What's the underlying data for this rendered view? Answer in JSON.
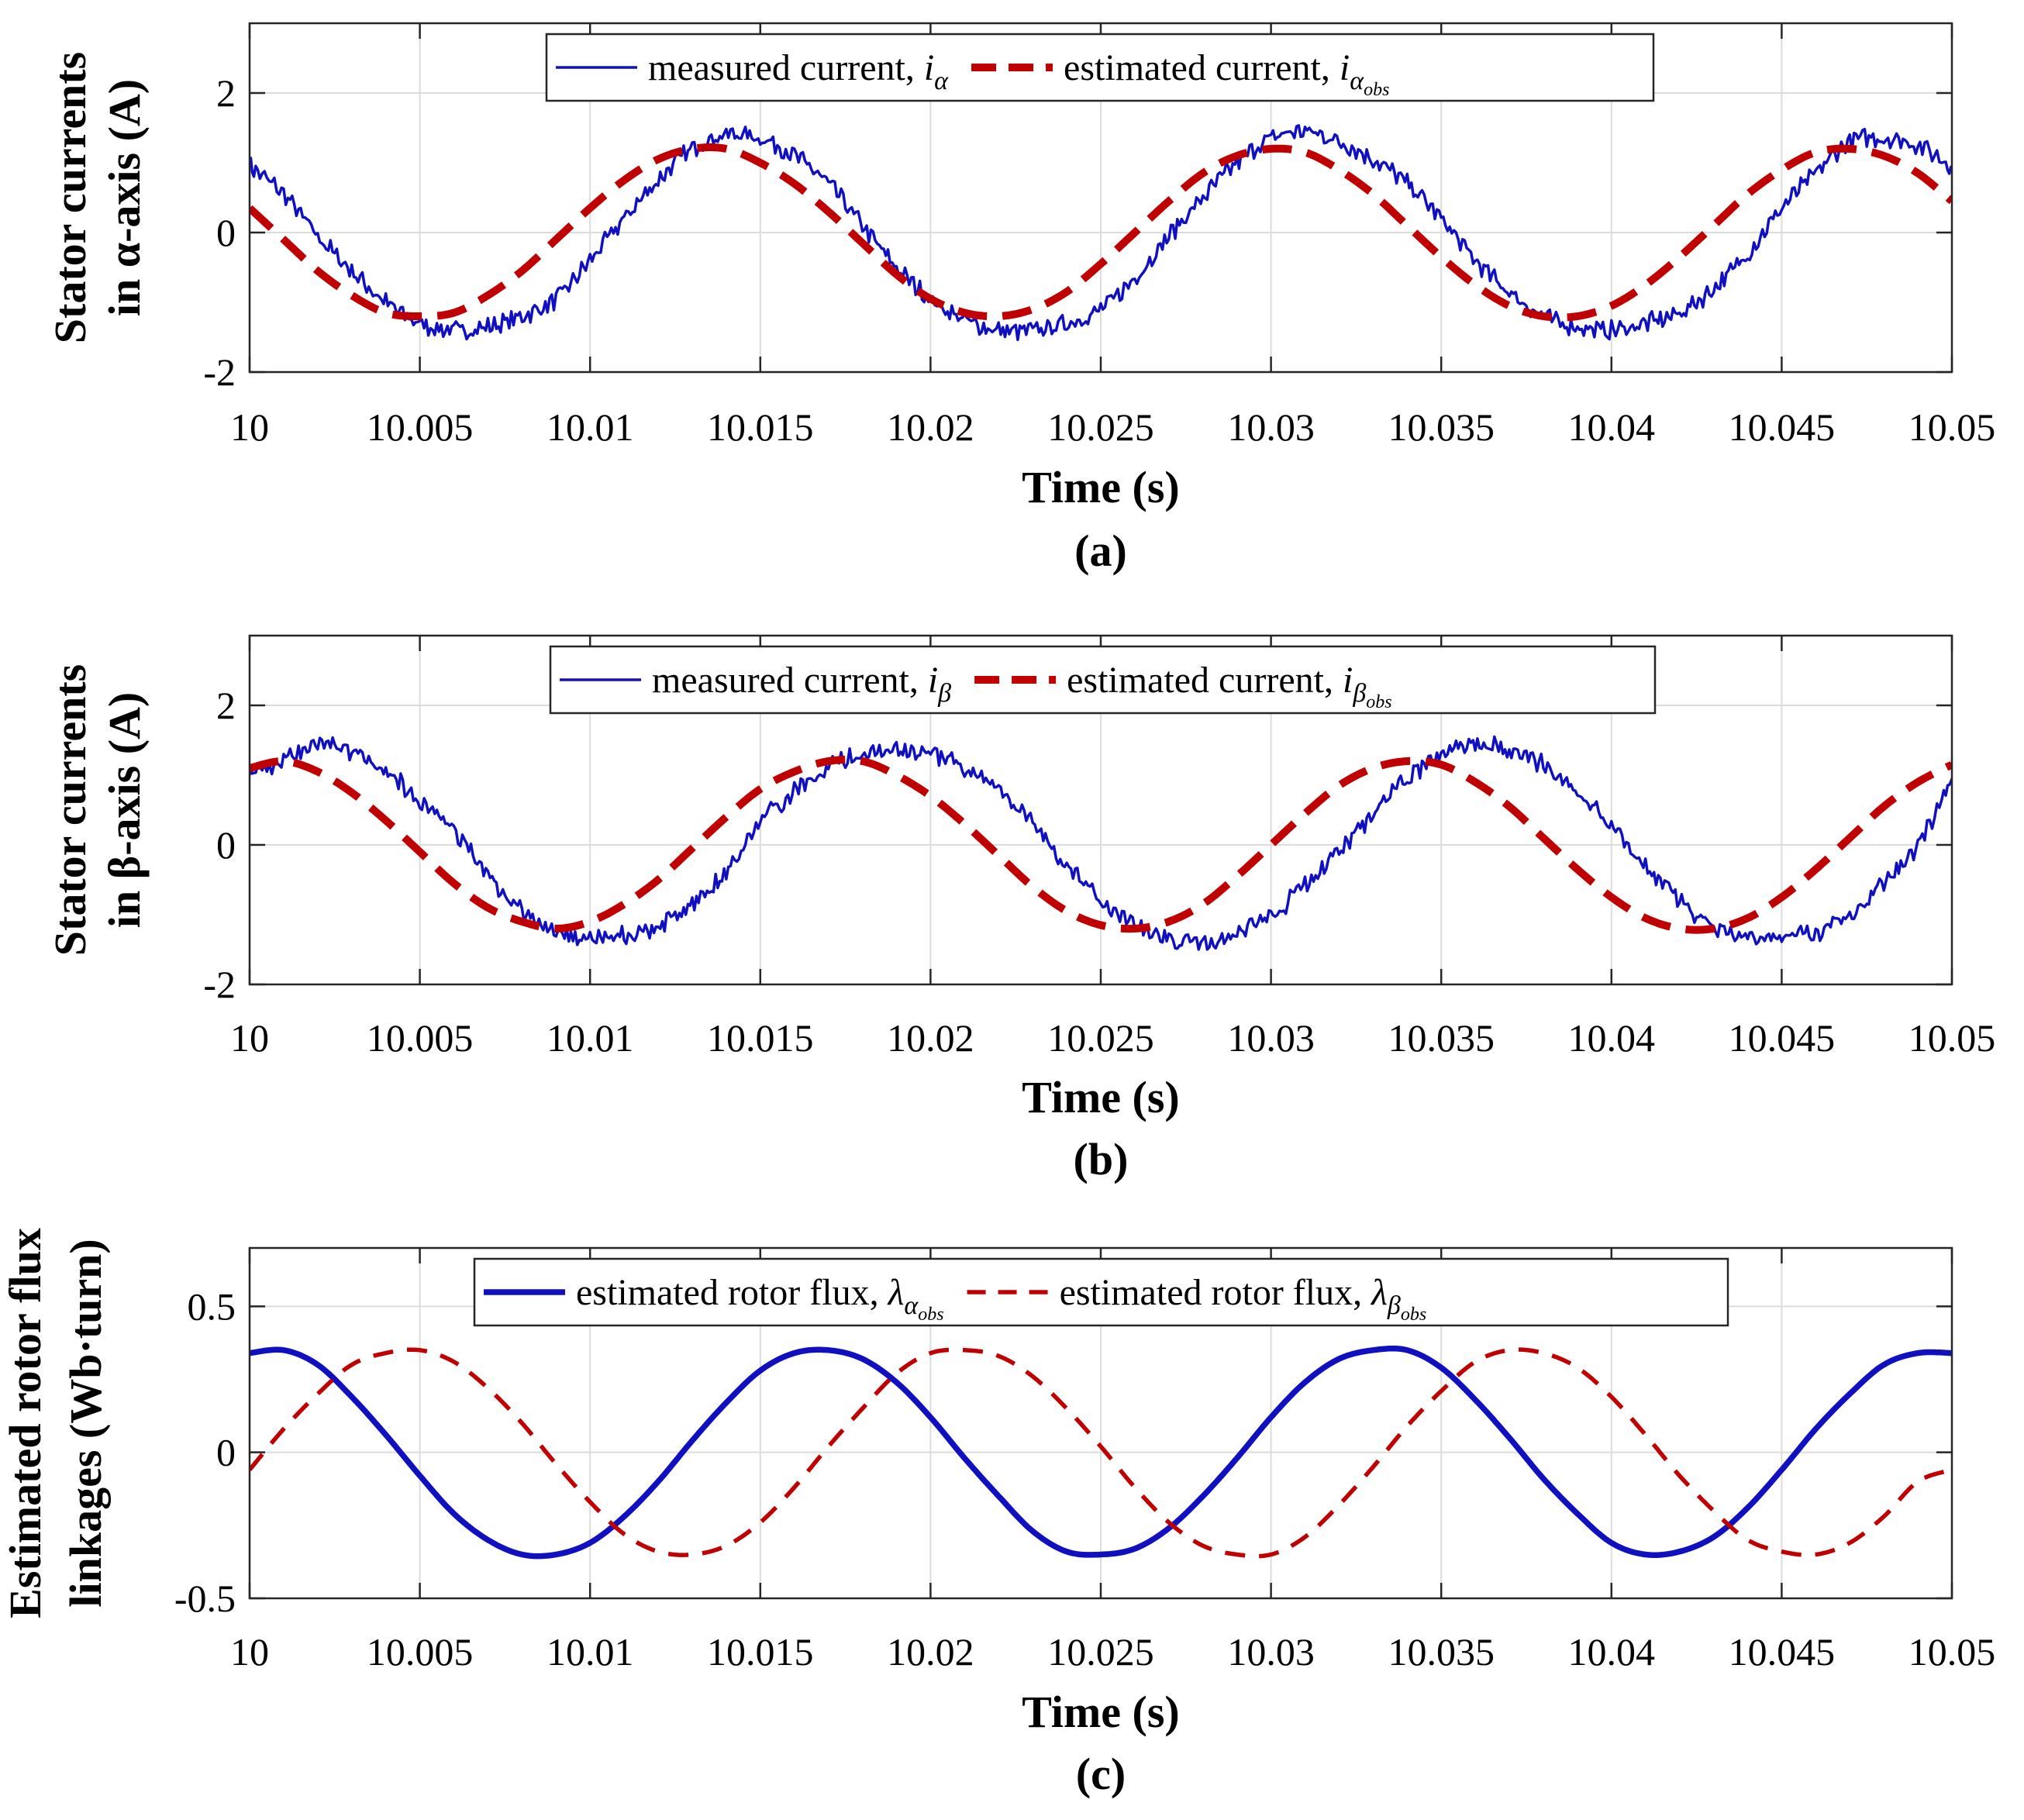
{
  "chart_data": [
    {
      "type": "line",
      "panel_label": "(a)",
      "xlabel": "Time (s)",
      "ylabel_lines": [
        "Stator currents",
        "in α-axis (A)"
      ],
      "xlim": [
        10,
        10.05
      ],
      "ylim": [
        -2,
        3
      ],
      "xticks": [
        10,
        10.005,
        10.01,
        10.015,
        10.02,
        10.025,
        10.03,
        10.035,
        10.04,
        10.045,
        10.05
      ],
      "xtick_labels": [
        "10",
        "10.005",
        "10.01",
        "10.015",
        "10.02",
        "10.025",
        "10.03",
        "10.035",
        "10.04",
        "10.045",
        "10.05"
      ],
      "yticks": [
        -2,
        0,
        2
      ],
      "ytick_labels": [
        "-2",
        "0",
        "2"
      ],
      "grid": true,
      "legend_placement": "top-center",
      "series": [
        {
          "name": "measured current, iα",
          "legend": {
            "prefix": "measured current, ",
            "symbol": "i",
            "sub": "α",
            "subsub": ""
          },
          "color": "#1010c0",
          "style": "solid",
          "noisy": true,
          "x": [
            10.0,
            10.001,
            10.002,
            10.003,
            10.004,
            10.005,
            10.006,
            10.007,
            10.008,
            10.009,
            10.01,
            10.011,
            10.012,
            10.013,
            10.014,
            10.015,
            10.016,
            10.017,
            10.018,
            10.019,
            10.02,
            10.021,
            10.022,
            10.023,
            10.024,
            10.025,
            10.026,
            10.027,
            10.028,
            10.029,
            10.03,
            10.031,
            10.032,
            10.033,
            10.034,
            10.035,
            10.036,
            10.037,
            10.038,
            10.039,
            10.04,
            10.041,
            10.042,
            10.043,
            10.044,
            10.045,
            10.046,
            10.047,
            10.048,
            10.049,
            10.05
          ],
          "y": [
            0.95,
            0.55,
            -0.05,
            -0.55,
            -1.0,
            -1.3,
            -1.4,
            -1.35,
            -1.2,
            -0.95,
            -0.4,
            0.2,
            0.75,
            1.2,
            1.4,
            1.35,
            1.1,
            0.7,
            0.1,
            -0.5,
            -0.95,
            -1.25,
            -1.4,
            -1.4,
            -1.3,
            -1.1,
            -0.65,
            -0.05,
            0.5,
            1.0,
            1.35,
            1.45,
            1.3,
            1.05,
            0.7,
            0.2,
            -0.4,
            -0.85,
            -1.2,
            -1.35,
            -1.4,
            -1.3,
            -1.15,
            -0.8,
            -0.3,
            0.35,
            0.85,
            1.3,
            1.35,
            1.25,
            0.95
          ]
        },
        {
          "name": "estimated current, iαobs",
          "legend": {
            "prefix": "estimated current, ",
            "symbol": "i",
            "sub": "α",
            "subsub": "obs"
          },
          "color": "#c00000",
          "style": "dashed",
          "noisy": false,
          "x": [
            10.0,
            10.001,
            10.002,
            10.003,
            10.004,
            10.005,
            10.006,
            10.007,
            10.008,
            10.009,
            10.01,
            10.011,
            10.012,
            10.013,
            10.014,
            10.015,
            10.016,
            10.017,
            10.018,
            10.019,
            10.02,
            10.021,
            10.022,
            10.023,
            10.024,
            10.025,
            10.026,
            10.027,
            10.028,
            10.029,
            10.03,
            10.031,
            10.032,
            10.033,
            10.034,
            10.035,
            10.036,
            10.037,
            10.038,
            10.039,
            10.04,
            10.041,
            10.042,
            10.043,
            10.044,
            10.045,
            10.046,
            10.047,
            10.048,
            10.049,
            10.05
          ],
          "y": [
            0.35,
            -0.1,
            -0.55,
            -0.9,
            -1.15,
            -1.2,
            -1.15,
            -0.9,
            -0.55,
            -0.1,
            0.35,
            0.75,
            1.05,
            1.2,
            1.2,
            1.0,
            0.7,
            0.3,
            -0.15,
            -0.6,
            -0.95,
            -1.15,
            -1.2,
            -1.1,
            -0.85,
            -0.45,
            0.0,
            0.45,
            0.85,
            1.1,
            1.2,
            1.15,
            0.9,
            0.55,
            0.1,
            -0.35,
            -0.75,
            -1.05,
            -1.2,
            -1.2,
            -1.05,
            -0.75,
            -0.35,
            0.1,
            0.55,
            0.9,
            1.15,
            1.2,
            1.1,
            0.85,
            0.45
          ]
        }
      ]
    },
    {
      "type": "line",
      "panel_label": "(b)",
      "xlabel": "Time (s)",
      "ylabel_lines": [
        "Stator currents",
        "in β-axis (A)"
      ],
      "xlim": [
        10,
        10.05
      ],
      "ylim": [
        -2,
        3
      ],
      "xticks": [
        10,
        10.005,
        10.01,
        10.015,
        10.02,
        10.025,
        10.03,
        10.035,
        10.04,
        10.045,
        10.05
      ],
      "xtick_labels": [
        "10",
        "10.005",
        "10.01",
        "10.015",
        "10.02",
        "10.025",
        "10.03",
        "10.035",
        "10.04",
        "10.045",
        "10.05"
      ],
      "yticks": [
        -2,
        0,
        2
      ],
      "ytick_labels": [
        "-2",
        "0",
        "2"
      ],
      "grid": true,
      "legend_placement": "top-center",
      "series": [
        {
          "name": "measured current, iβ",
          "legend": {
            "prefix": "measured current, ",
            "symbol": "i",
            "sub": "β",
            "subsub": ""
          },
          "color": "#1010c0",
          "style": "solid",
          "noisy": true,
          "x": [
            10.0,
            10.001,
            10.002,
            10.003,
            10.004,
            10.005,
            10.006,
            10.007,
            10.008,
            10.009,
            10.01,
            10.011,
            10.012,
            10.013,
            10.014,
            10.015,
            10.016,
            10.017,
            10.018,
            10.019,
            10.02,
            10.021,
            10.022,
            10.023,
            10.024,
            10.025,
            10.026,
            10.027,
            10.028,
            10.029,
            10.03,
            10.031,
            10.032,
            10.033,
            10.034,
            10.035,
            10.036,
            10.037,
            10.038,
            10.039,
            10.04,
            10.041,
            10.042,
            10.043,
            10.044,
            10.045,
            10.046,
            10.047,
            10.048,
            10.049,
            10.05
          ],
          "y": [
            1.0,
            1.2,
            1.45,
            1.35,
            1.05,
            0.65,
            0.2,
            -0.45,
            -0.95,
            -1.25,
            -1.35,
            -1.3,
            -1.15,
            -0.85,
            -0.4,
            0.3,
            0.75,
            1.1,
            1.3,
            1.35,
            1.3,
            1.1,
            0.75,
            0.3,
            -0.3,
            -0.8,
            -1.15,
            -1.35,
            -1.4,
            -1.25,
            -1.0,
            -0.6,
            -0.1,
            0.45,
            0.95,
            1.3,
            1.45,
            1.35,
            1.15,
            0.75,
            0.25,
            -0.3,
            -0.8,
            -1.15,
            -1.3,
            -1.3,
            -1.25,
            -1.0,
            -0.55,
            0.0,
            0.95
          ]
        },
        {
          "name": "estimated current, iβobs",
          "legend": {
            "prefix": "estimated current, ",
            "symbol": "i",
            "sub": "β",
            "subsub": "obs"
          },
          "color": "#c00000",
          "style": "dashed",
          "noisy": false,
          "x": [
            10.0,
            10.001,
            10.002,
            10.003,
            10.004,
            10.005,
            10.006,
            10.007,
            10.008,
            10.009,
            10.01,
            10.011,
            10.012,
            10.013,
            10.014,
            10.015,
            10.016,
            10.017,
            10.018,
            10.019,
            10.02,
            10.021,
            10.022,
            10.023,
            10.024,
            10.025,
            10.026,
            10.027,
            10.028,
            10.029,
            10.03,
            10.031,
            10.032,
            10.033,
            10.034,
            10.035,
            10.036,
            10.037,
            10.038,
            10.039,
            10.04,
            10.041,
            10.042,
            10.043,
            10.044,
            10.045,
            10.046,
            10.047,
            10.048,
            10.049,
            10.05
          ],
          "y": [
            1.1,
            1.2,
            1.05,
            0.75,
            0.35,
            -0.1,
            -0.55,
            -0.9,
            -1.1,
            -1.2,
            -1.1,
            -0.85,
            -0.5,
            -0.05,
            0.4,
            0.8,
            1.05,
            1.2,
            1.2,
            1.0,
            0.7,
            0.3,
            -0.15,
            -0.6,
            -0.95,
            -1.15,
            -1.2,
            -1.1,
            -0.85,
            -0.45,
            0.0,
            0.45,
            0.85,
            1.1,
            1.2,
            1.15,
            0.9,
            0.55,
            0.1,
            -0.35,
            -0.75,
            -1.05,
            -1.2,
            -1.2,
            -1.05,
            -0.75,
            -0.35,
            0.1,
            0.55,
            0.9,
            1.15
          ]
        }
      ]
    },
    {
      "type": "line",
      "panel_label": "(c)",
      "xlabel": "Time (s)",
      "ylabel_lines": [
        "Estimated rotor flux",
        "linkages (Wb·turn)"
      ],
      "xlim": [
        10,
        10.05
      ],
      "ylim": [
        -0.5,
        0.7
      ],
      "xticks": [
        10,
        10.005,
        10.01,
        10.015,
        10.02,
        10.025,
        10.03,
        10.035,
        10.04,
        10.045,
        10.05
      ],
      "xtick_labels": [
        "10",
        "10.005",
        "10.01",
        "10.015",
        "10.02",
        "10.025",
        "10.03",
        "10.035",
        "10.04",
        "10.045",
        "10.05"
      ],
      "yticks": [
        -0.5,
        0,
        0.5
      ],
      "ytick_labels": [
        "-0.5",
        "0",
        "0.5"
      ],
      "grid": true,
      "legend_placement": "top-center",
      "series": [
        {
          "name": "estimated rotor flux, λαobs",
          "legend": {
            "prefix": "estimated rotor flux, ",
            "symbol": "λ",
            "sub": "α",
            "subsub": "obs"
          },
          "color": "#1010c0",
          "style": "solid-thick",
          "noisy": false,
          "x": [
            10.0,
            10.001,
            10.002,
            10.003,
            10.004,
            10.005,
            10.006,
            10.007,
            10.008,
            10.009,
            10.01,
            10.011,
            10.012,
            10.013,
            10.014,
            10.015,
            10.016,
            10.017,
            10.018,
            10.019,
            10.02,
            10.021,
            10.022,
            10.023,
            10.024,
            10.025,
            10.026,
            10.027,
            10.028,
            10.029,
            10.03,
            10.031,
            10.032,
            10.033,
            10.034,
            10.035,
            10.036,
            10.037,
            10.038,
            10.039,
            10.04,
            10.041,
            10.042,
            10.043,
            10.044,
            10.045,
            10.046,
            10.047,
            10.048,
            10.049,
            10.05
          ],
          "y": [
            0.34,
            0.35,
            0.3,
            0.19,
            0.06,
            -0.08,
            -0.21,
            -0.3,
            -0.35,
            -0.35,
            -0.31,
            -0.22,
            -0.1,
            0.04,
            0.17,
            0.28,
            0.34,
            0.35,
            0.32,
            0.24,
            0.12,
            -0.02,
            -0.15,
            -0.27,
            -0.34,
            -0.35,
            -0.33,
            -0.26,
            -0.15,
            -0.02,
            0.12,
            0.24,
            0.32,
            0.35,
            0.35,
            0.29,
            0.18,
            0.05,
            -0.09,
            -0.21,
            -0.31,
            -0.35,
            -0.34,
            -0.29,
            -0.19,
            -0.06,
            0.08,
            0.2,
            0.3,
            0.34,
            0.34
          ]
        },
        {
          "name": "estimated rotor flux, λβobs",
          "legend": {
            "prefix": "estimated rotor flux, ",
            "symbol": "λ",
            "sub": "β",
            "subsub": "obs"
          },
          "color": "#c00000",
          "style": "dashed-thin",
          "noisy": false,
          "x": [
            10.0,
            10.001,
            10.002,
            10.003,
            10.004,
            10.005,
            10.006,
            10.007,
            10.008,
            10.009,
            10.01,
            10.011,
            10.012,
            10.013,
            10.014,
            10.015,
            10.016,
            10.017,
            10.018,
            10.019,
            10.02,
            10.021,
            10.022,
            10.023,
            10.024,
            10.025,
            10.026,
            10.027,
            10.028,
            10.029,
            10.03,
            10.031,
            10.032,
            10.033,
            10.034,
            10.035,
            10.036,
            10.037,
            10.038,
            10.039,
            10.04,
            10.041,
            10.042,
            10.043,
            10.044,
            10.045,
            10.046,
            10.047,
            10.048,
            10.049,
            10.05
          ],
          "y": [
            -0.06,
            0.08,
            0.2,
            0.3,
            0.34,
            0.35,
            0.31,
            0.22,
            0.1,
            -0.04,
            -0.17,
            -0.28,
            -0.34,
            -0.35,
            -0.32,
            -0.24,
            -0.12,
            0.02,
            0.15,
            0.27,
            0.34,
            0.35,
            0.33,
            0.26,
            0.15,
            0.02,
            -0.12,
            -0.24,
            -0.32,
            -0.35,
            -0.35,
            -0.29,
            -0.18,
            -0.05,
            0.09,
            0.21,
            0.31,
            0.35,
            0.34,
            0.29,
            0.19,
            0.06,
            -0.08,
            -0.2,
            -0.3,
            -0.34,
            -0.35,
            -0.31,
            -0.22,
            -0.1,
            -0.06
          ]
        }
      ]
    }
  ]
}
